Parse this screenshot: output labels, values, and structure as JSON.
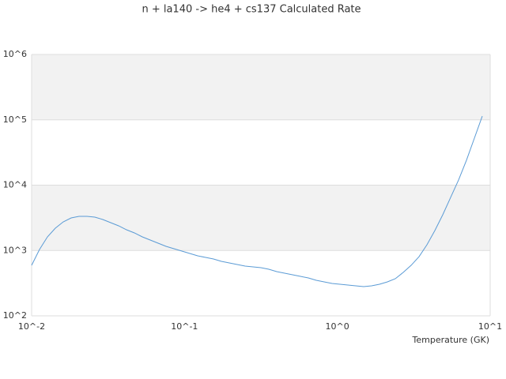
{
  "chart_data": {
    "type": "line",
    "title": "n + la140 -> he4 + cs137 Calculated Rate",
    "x_label": "Temperature (GK)",
    "x_scale": "log",
    "y_scale": "log",
    "banded": true,
    "xlim": [
      0.01,
      10
    ],
    "ylim": [
      100,
      1000000
    ],
    "xticks": [
      {
        "value": 0.01,
        "label": "10^-2"
      },
      {
        "value": 0.1,
        "label": "10^-1"
      },
      {
        "value": 1,
        "label": "10^0"
      },
      {
        "value": 10,
        "label": "10^1"
      }
    ],
    "yticks": [
      {
        "value": 100,
        "label": "10^2"
      },
      {
        "value": 1000,
        "label": "10^3"
      },
      {
        "value": 10000,
        "label": "10^4"
      },
      {
        "value": 100000,
        "label": "10^5"
      },
      {
        "value": 1000000,
        "label": "10^6"
      }
    ],
    "series": [
      {
        "color": "#5b9bd5",
        "x": [
          0.01,
          0.01126,
          0.01269,
          0.01429,
          0.0161,
          0.01814,
          0.02043,
          0.02302,
          0.02593,
          0.02921,
          0.0329,
          0.03707,
          0.04176,
          0.04704,
          0.05299,
          0.0597,
          0.06725,
          0.07576,
          0.08532,
          0.09612,
          0.1083,
          0.122,
          0.1374,
          0.1548,
          0.1744,
          0.1964,
          0.2213,
          0.2493,
          0.2808,
          0.3162,
          0.3563,
          0.4013,
          0.452,
          0.5092,
          0.5736,
          0.6462,
          0.7279,
          0.82,
          0.9237,
          1.041,
          1.172,
          1.32,
          1.487,
          1.675,
          1.887,
          2.126,
          2.395,
          2.698,
          3.039,
          3.424,
          3.857,
          4.345,
          4.894,
          5.513,
          6.211,
          6.996,
          7.881,
          8.878
        ],
        "values": [
          593,
          1036,
          1616,
          2195,
          2741,
          3150,
          3333,
          3333,
          3243,
          2979,
          2667,
          2387,
          2075,
          1858,
          1616,
          1445,
          1294,
          1157,
          1064,
          979,
          901,
          828,
          784,
          741,
          682,
          645,
          610,
          577,
          561,
          546,
          516,
          475,
          449,
          425,
          402,
          380,
          350,
          331,
          313,
          304,
          296,
          288,
          280,
          288,
          304,
          331,
          370,
          462,
          593,
          805,
          1224,
          2018,
          3524,
          6501,
          11990,
          24040,
          52360,
          114000
        ]
      }
    ]
  }
}
